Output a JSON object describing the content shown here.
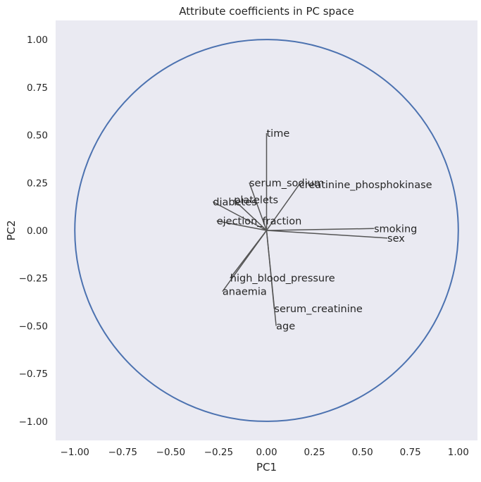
{
  "chart_data": {
    "type": "scatter",
    "title": "Attribute coefficients in PC space",
    "xlabel": "PC1",
    "ylabel": "PC2",
    "xlim": [
      -1.1,
      1.1
    ],
    "ylim": [
      -1.1,
      1.1
    ],
    "xticks": [
      -1.0,
      -0.75,
      -0.5,
      -0.25,
      0.0,
      0.25,
      0.5,
      0.75,
      1.0
    ],
    "yticks": [
      -1.0,
      -0.75,
      -0.5,
      -0.25,
      0.0,
      0.25,
      0.5,
      0.75,
      1.0
    ],
    "xtick_labels": [
      "−1.00",
      "−0.75",
      "−0.50",
      "−0.25",
      "0.00",
      "0.25",
      "0.50",
      "0.75",
      "1.00"
    ],
    "ytick_labels": [
      "−1.00",
      "−0.75",
      "−0.50",
      "−0.25",
      "0.00",
      "0.25",
      "0.50",
      "0.75",
      "1.00"
    ],
    "grid": false,
    "background_color": "#eaeaf2",
    "circle": {
      "center": [
        0,
        0
      ],
      "radius": 1.0,
      "color": "#4c72b0"
    },
    "vector_color": "#555555",
    "vectors": [
      {
        "name": "time",
        "x": 0.0,
        "y": 0.51
      },
      {
        "name": "serum_sodium",
        "x": -0.09,
        "y": 0.25
      },
      {
        "name": "creatinine_phosphokinase",
        "x": 0.17,
        "y": 0.24
      },
      {
        "name": "diabetes",
        "x": -0.28,
        "y": 0.15
      },
      {
        "name": "platelets",
        "x": -0.17,
        "y": 0.16
      },
      {
        "name": "ejection_fraction",
        "x": -0.26,
        "y": 0.05
      },
      {
        "name": "smoking",
        "x": 0.56,
        "y": 0.01
      },
      {
        "name": "sex",
        "x": 0.63,
        "y": -0.04
      },
      {
        "name": "high_blood_pressure",
        "x": -0.19,
        "y": -0.25
      },
      {
        "name": "anaemia",
        "x": -0.23,
        "y": -0.32
      },
      {
        "name": "serum_creatinine",
        "x": 0.04,
        "y": -0.41
      },
      {
        "name": "age",
        "x": 0.05,
        "y": -0.5
      }
    ]
  }
}
